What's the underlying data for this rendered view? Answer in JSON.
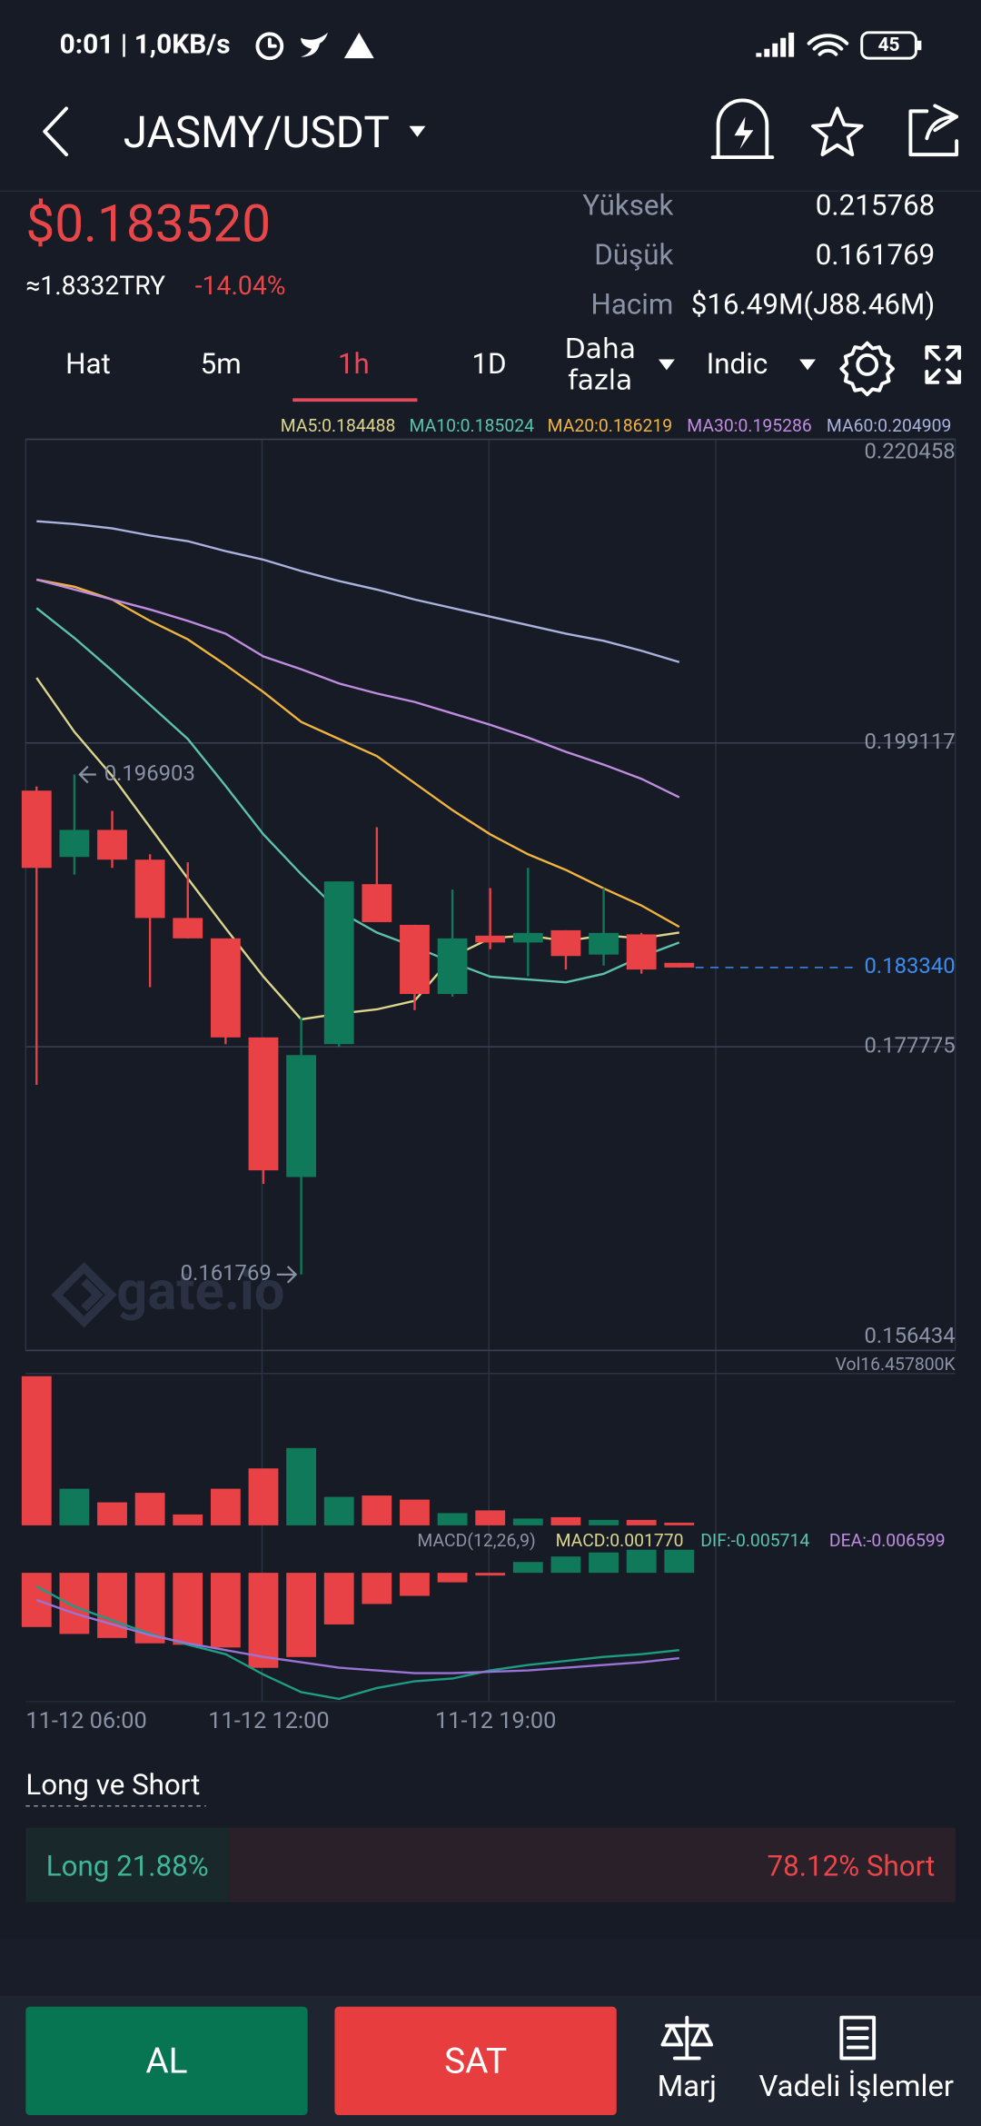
{
  "status_bar": {
    "time": "0:01 | 1,0KB/s",
    "battery": "45"
  },
  "header": {
    "pair": "JASMY/USDT"
  },
  "ticker": {
    "price": "$0.183520",
    "converted": "≈1.8332TRY",
    "change": "-14.04%",
    "stats": [
      {
        "label": "Yüksek",
        "value": "0.215768"
      },
      {
        "label": "Düşük",
        "value": "0.161769"
      },
      {
        "label": "Hacim",
        "value": "$16.49M(J88.46M)"
      }
    ]
  },
  "tabs": [
    "Hat",
    "5m",
    "1h",
    "1D",
    "Daha fazla",
    "Indic"
  ],
  "chart_data": {
    "type": "candlestick",
    "watermark": "gate.io",
    "categories": [
      "11-12 06:00",
      null,
      null,
      null,
      null,
      null,
      "11-12 12:00",
      null,
      null,
      null,
      null,
      null,
      "11-12 19:00",
      null,
      null,
      null,
      null,
      null
    ],
    "open": [
      0.19577,
      0.19111,
      0.19301,
      0.19092,
      0.18682,
      0.18539,
      0.17843,
      0.16862,
      0.17796,
      0.1892,
      0.18634,
      0.18148,
      0.18558,
      0.1851,
      0.18596,
      0.18425,
      0.18567,
      0.18367
    ],
    "high": [
      0.19606,
      0.196903,
      0.19435,
      0.1913,
      0.19073,
      0.18539,
      0.17843,
      0.17986,
      0.18939,
      0.1932,
      0.18634,
      0.18882,
      0.18892,
      0.19034,
      0.18596,
      0.18892,
      0.18577,
      0.18367
    ],
    "low": [
      0.1751,
      0.18987,
      0.19034,
      0.18196,
      0.18539,
      0.17796,
      0.16814,
      0.161769,
      0.17776,
      0.18653,
      0.18034,
      0.18129,
      0.18463,
      0.18272,
      0.1832,
      0.18348,
      0.18291,
      0.18334
    ],
    "close": [
      0.19034,
      0.19301,
      0.19092,
      0.18682,
      0.18539,
      0.17843,
      0.16909,
      0.17719,
      0.18939,
      0.18653,
      0.18148,
      0.18539,
      0.1851,
      0.18577,
      0.18415,
      0.18577,
      0.1832,
      0.18334
    ],
    "up_color": "#10795a",
    "down_color": "#e84246",
    "ylim": [
      0.156434,
      0.220458
    ],
    "yticks": [
      0.220458,
      0.199117,
      0.177775,
      0.156434
    ],
    "last_price": {
      "value": 0.18334,
      "label": "0.183340"
    },
    "high_marker": 0.196903,
    "low_marker": 0.161769,
    "grid": true,
    "series": [
      {
        "name": "MA5:0.184488",
        "color": "#dcd68c",
        "values": [
          0.2037,
          0.1999,
          0.1968,
          0.1932,
          0.1896,
          0.1861,
          0.1827,
          0.1797,
          0.1801,
          0.1804,
          0.181,
          0.1841,
          0.1854,
          0.1856,
          0.1852,
          0.1856,
          0.1854,
          0.1858
        ]
      },
      {
        "name": "MA10:0.185024",
        "color": "#5cc2ad",
        "values": [
          0.2086,
          0.2065,
          0.2042,
          0.2018,
          0.1994,
          0.1961,
          0.1927,
          0.1899,
          0.1873,
          0.1858,
          0.1848,
          0.1837,
          0.1827,
          0.1825,
          0.1823,
          0.1829,
          0.1841,
          0.1851
        ]
      },
      {
        "name": "MA20:0.186219",
        "color": "#f0b43f",
        "values": [
          0.2106,
          0.2101,
          0.2092,
          0.2077,
          0.2064,
          0.2046,
          0.2027,
          0.2006,
          0.1994,
          0.1982,
          0.1963,
          0.1944,
          0.1927,
          0.1913,
          0.1902,
          0.1889,
          0.1877,
          0.1862
        ]
      },
      {
        "name": "MA30:0.195286",
        "color": "#c08ce0",
        "values": [
          0.2106,
          0.2099,
          0.2092,
          0.2085,
          0.2077,
          0.2068,
          0.2052,
          0.2043,
          0.2033,
          0.2026,
          0.202,
          0.2012,
          0.2004,
          0.1995,
          0.1985,
          0.1976,
          0.1966,
          0.1953
        ]
      },
      {
        "name": "MA60:0.204909",
        "color": "#a9b3de",
        "values": [
          0.2147,
          0.2145,
          0.2142,
          0.2137,
          0.2133,
          0.2126,
          0.212,
          0.2112,
          0.2105,
          0.2099,
          0.2092,
          0.2086,
          0.208,
          0.2074,
          0.2068,
          0.2063,
          0.2056,
          0.2048
        ]
      }
    ],
    "volume": {
      "label": "Vol16.457800K",
      "ylim": [
        0,
        16.4578
      ],
      "values": [
        16.46,
        4.04,
        2.54,
        3.59,
        1.2,
        4.04,
        6.28,
        8.53,
        3.14,
        3.29,
        2.84,
        1.35,
        1.65,
        0.75,
        0.9,
        0.6,
        0.6,
        0.3
      ]
    },
    "macd": {
      "ylim": [
        -0.00988,
        0.00208
      ],
      "labels": [
        {
          "name": "MACD(12,26,9)",
          "color": "#8a93a6"
        },
        {
          "name": "MACD:0.001770",
          "color": "#dcd68c"
        },
        {
          "name": "DIF:-0.005714",
          "color": "#5cc2ad"
        },
        {
          "name": "DEA:-0.006599",
          "color": "#c08ce0"
        }
      ],
      "histogram": [
        -0.00416,
        -0.00469,
        -0.005,
        -0.00541,
        -0.00552,
        -0.00573,
        -0.00729,
        -0.00646,
        -0.00396,
        -0.00239,
        -0.00177,
        -0.00073,
        -0.00021,
        0.00083,
        0.00125,
        0.00156,
        0.00177,
        0.00177
      ],
      "dif": [
        -0.00104,
        -0.0026,
        -0.00364,
        -0.00468,
        -0.00551,
        -0.00624,
        -0.0078,
        -0.00915,
        -0.00967,
        -0.00884,
        -0.00832,
        -0.00811,
        -0.00749,
        -0.00707,
        -0.00676,
        -0.00645,
        -0.00624,
        -0.00593
      ],
      "dea": [
        -0.00208,
        -0.00312,
        -0.00395,
        -0.00478,
        -0.00541,
        -0.00593,
        -0.00645,
        -0.00686,
        -0.00728,
        -0.00749,
        -0.0077,
        -0.0077,
        -0.00759,
        -0.00749,
        -0.00728,
        -0.00707,
        -0.00686,
        -0.00655
      ]
    }
  },
  "long_short": {
    "title": "Long ve Short",
    "long_label": "Long 21.88%",
    "short_label": "78.12% Short",
    "long": 21.88,
    "short": 78.12
  },
  "bottom_bar": {
    "buy": "AL",
    "sell": "SAT",
    "margin": "Marj",
    "futures": "Vadeli İşlemler"
  }
}
